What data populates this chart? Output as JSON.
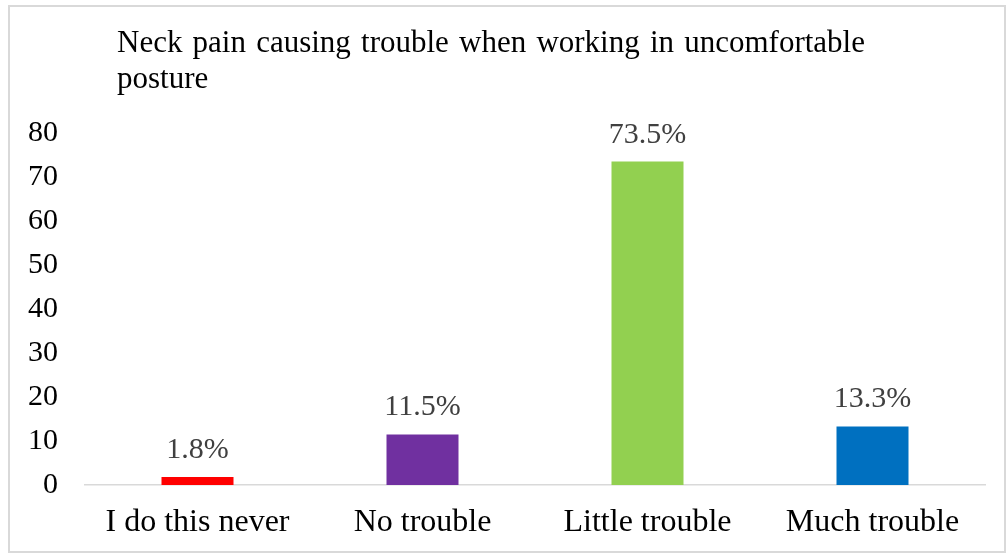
{
  "chart_data": {
    "type": "bar",
    "title": "Neck pain causing trouble when working in uncomfortable posture",
    "categories": [
      "I do this never",
      "No trouble",
      "Little trouble",
      "Much trouble"
    ],
    "values": [
      1.8,
      11.5,
      73.5,
      13.3
    ],
    "colors": [
      "#ff0000",
      "#7030a0",
      "#92d050",
      "#0070c0"
    ],
    "value_labels": [
      "1.8%",
      "11.5%",
      "73.5%",
      "13.3%"
    ],
    "ylim": [
      0,
      80
    ],
    "yticks": [
      0,
      10,
      20,
      30,
      40,
      50,
      60,
      70,
      80
    ]
  }
}
